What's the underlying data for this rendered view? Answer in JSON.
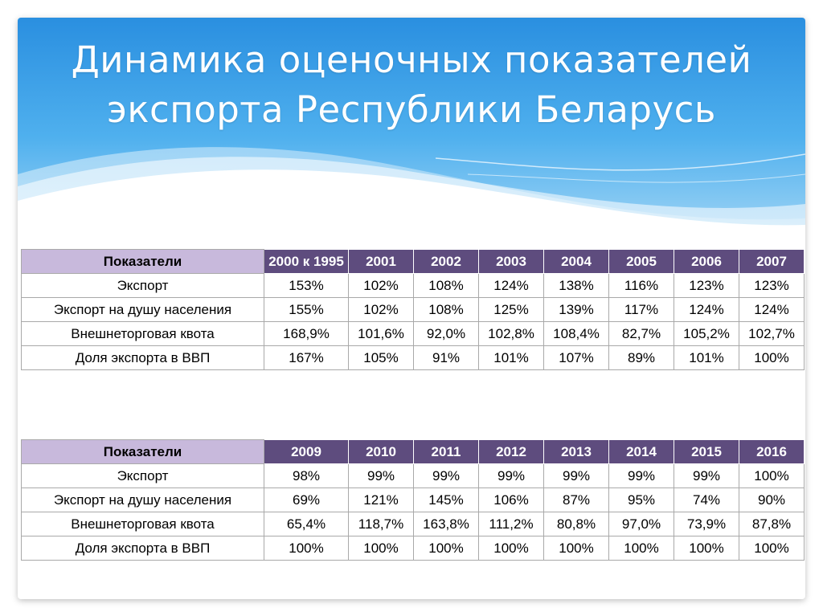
{
  "slide": {
    "title_line1": "Динамика оценочных показателей",
    "title_line2": "экспорта Республики Беларусь"
  },
  "colors": {
    "header_blue": "#2a8fe0",
    "header_light": "#9fd4f5",
    "table_header": "#5e4c7e",
    "table_corner": "#c8b9dc"
  },
  "table1": {
    "corner": "Показатели",
    "columns": [
      "2000 к 1995",
      "2001",
      "2002",
      "2003",
      "2004",
      "2005",
      "2006",
      "2007"
    ],
    "rows": [
      {
        "label": "Экспорт",
        "values": [
          "153%",
          "102%",
          "108%",
          "124%",
          "138%",
          "116%",
          "123%",
          "123%"
        ]
      },
      {
        "label": "Экспорт на душу населения",
        "values": [
          "155%",
          "102%",
          "108%",
          "125%",
          "139%",
          "117%",
          "124%",
          "124%"
        ]
      },
      {
        "label": "Внешнеторговая квота",
        "values": [
          "168,9%",
          "101,6%",
          "92,0%",
          "102,8%",
          "108,4%",
          "82,7%",
          "105,2%",
          "102,7%"
        ]
      },
      {
        "label": "Доля экспорта в ВВП",
        "values": [
          "167%",
          "105%",
          "91%",
          "101%",
          "107%",
          "89%",
          "101%",
          "100%"
        ]
      }
    ]
  },
  "table2": {
    "corner": "Показатели",
    "columns": [
      "2009",
      "2010",
      "2011",
      "2012",
      "2013",
      "2014",
      "2015",
      "2016"
    ],
    "rows": [
      {
        "label": "Экспорт",
        "values": [
          "98%",
          "99%",
          "99%",
          "99%",
          "99%",
          "99%",
          "99%",
          "100%"
        ]
      },
      {
        "label": "Экспорт на душу населения",
        "values": [
          "69%",
          "121%",
          "145%",
          "106%",
          "87%",
          "95%",
          "74%",
          "90%"
        ]
      },
      {
        "label": "Внешнеторговая квота",
        "values": [
          "65,4%",
          "118,7%",
          "163,8%",
          "111,2%",
          "80,8%",
          "97,0%",
          "73,9%",
          "87,8%"
        ]
      },
      {
        "label": "Доля экспорта в ВВП",
        "values": [
          "100%",
          "100%",
          "100%",
          "100%",
          "100%",
          "100%",
          "100%",
          "100%"
        ]
      }
    ]
  }
}
